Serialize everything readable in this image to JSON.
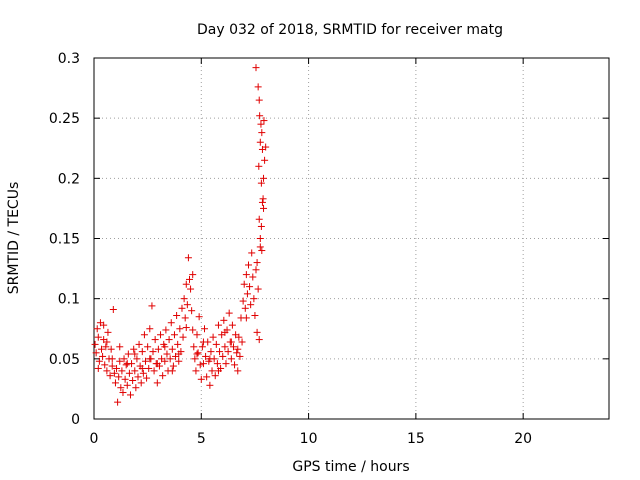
{
  "chart_data": {
    "type": "scatter",
    "title": "Day 032 of 2018, SRMTID for receiver matg",
    "xlabel": "GPS time / hours",
    "ylabel": "SRMTID / TECUs",
    "xlim": [
      0,
      24
    ],
    "ylim": [
      0,
      0.3
    ],
    "xticks": [
      0,
      5,
      10,
      15,
      20
    ],
    "xtick_labels": [
      "0",
      "5",
      "10",
      "15",
      "20"
    ],
    "yticks": [
      0,
      0.05,
      0.1,
      0.15,
      0.2,
      0.25,
      0.3
    ],
    "ytick_labels": [
      "0",
      "0.05",
      "0.1",
      "0.15",
      "0.2",
      "0.25",
      "0.3"
    ],
    "grid": true,
    "marker": "+",
    "color": "#e00000",
    "series": [
      {
        "name": "SRMTID",
        "points": [
          [
            0.05,
            0.062
          ],
          [
            0.1,
            0.055
          ],
          [
            0.15,
            0.075
          ],
          [
            0.2,
            0.068
          ],
          [
            0.25,
            0.048
          ],
          [
            0.3,
            0.08
          ],
          [
            0.35,
            0.058
          ],
          [
            0.4,
            0.052
          ],
          [
            0.45,
            0.066
          ],
          [
            0.5,
            0.045
          ],
          [
            0.55,
            0.06
          ],
          [
            0.6,
            0.04
          ],
          [
            0.65,
            0.072
          ],
          [
            0.7,
            0.05
          ],
          [
            0.75,
            0.036
          ],
          [
            0.8,
            0.058
          ],
          [
            0.85,
            0.044
          ],
          [
            0.9,
            0.091
          ],
          [
            0.95,
            0.038
          ],
          [
            1.0,
            0.03
          ],
          [
            1.05,
            0.042
          ],
          [
            1.1,
            0.014
          ],
          [
            1.15,
            0.035
          ],
          [
            1.2,
            0.048
          ],
          [
            1.25,
            0.026
          ],
          [
            1.3,
            0.04
          ],
          [
            1.35,
            0.022
          ],
          [
            1.4,
            0.05
          ],
          [
            1.45,
            0.033
          ],
          [
            1.5,
            0.045
          ],
          [
            1.55,
            0.028
          ],
          [
            1.6,
            0.054
          ],
          [
            1.65,
            0.038
          ],
          [
            1.7,
            0.02
          ],
          [
            1.75,
            0.046
          ],
          [
            1.8,
            0.032
          ],
          [
            1.85,
            0.058
          ],
          [
            1.9,
            0.04
          ],
          [
            1.95,
            0.026
          ],
          [
            2.0,
            0.05
          ],
          [
            2.05,
            0.035
          ],
          [
            2.1,
            0.062
          ],
          [
            2.15,
            0.044
          ],
          [
            2.2,
            0.03
          ],
          [
            2.25,
            0.056
          ],
          [
            2.3,
            0.038
          ],
          [
            2.35,
            0.07
          ],
          [
            2.4,
            0.048
          ],
          [
            2.45,
            0.034
          ],
          [
            2.5,
            0.06
          ],
          [
            2.55,
            0.042
          ],
          [
            2.6,
            0.075
          ],
          [
            2.65,
            0.05
          ],
          [
            2.7,
            0.094
          ],
          [
            2.75,
            0.056
          ],
          [
            2.8,
            0.04
          ],
          [
            2.85,
            0.066
          ],
          [
            2.9,
            0.046
          ],
          [
            2.95,
            0.03
          ],
          [
            3.0,
            0.058
          ],
          [
            3.05,
            0.044
          ],
          [
            3.1,
            0.07
          ],
          [
            3.15,
            0.05
          ],
          [
            3.2,
            0.036
          ],
          [
            3.25,
            0.062
          ],
          [
            3.3,
            0.048
          ],
          [
            3.35,
            0.074
          ],
          [
            3.4,
            0.054
          ],
          [
            3.45,
            0.04
          ],
          [
            3.5,
            0.066
          ],
          [
            3.55,
            0.05
          ],
          [
            3.6,
            0.08
          ],
          [
            3.65,
            0.058
          ],
          [
            3.7,
            0.044
          ],
          [
            3.75,
            0.07
          ],
          [
            3.8,
            0.052
          ],
          [
            3.85,
            0.086
          ],
          [
            3.9,
            0.062
          ],
          [
            3.95,
            0.048
          ],
          [
            4.0,
            0.075
          ],
          [
            4.05,
            0.056
          ],
          [
            4.1,
            0.092
          ],
          [
            4.15,
            0.068
          ],
          [
            4.2,
            0.1
          ],
          [
            4.25,
            0.084
          ],
          [
            4.3,
            0.112
          ],
          [
            4.35,
            0.095
          ],
          [
            4.4,
            0.134
          ],
          [
            4.45,
            0.116
          ],
          [
            4.5,
            0.108
          ],
          [
            4.55,
            0.09
          ],
          [
            4.6,
            0.074
          ],
          [
            4.65,
            0.06
          ],
          [
            4.7,
            0.05
          ],
          [
            4.75,
            0.04
          ],
          [
            4.8,
            0.07
          ],
          [
            4.85,
            0.055
          ],
          [
            4.9,
            0.085
          ],
          [
            4.95,
            0.045
          ],
          [
            5.0,
            0.033
          ],
          [
            5.05,
            0.06
          ],
          [
            5.1,
            0.046
          ],
          [
            5.15,
            0.075
          ],
          [
            5.2,
            0.052
          ],
          [
            5.25,
            0.035
          ],
          [
            5.3,
            0.064
          ],
          [
            5.35,
            0.048
          ],
          [
            5.4,
            0.028
          ],
          [
            5.45,
            0.056
          ],
          [
            5.5,
            0.04
          ],
          [
            5.55,
            0.068
          ],
          [
            5.6,
            0.05
          ],
          [
            5.65,
            0.036
          ],
          [
            5.7,
            0.062
          ],
          [
            5.75,
            0.046
          ],
          [
            5.8,
            0.078
          ],
          [
            5.85,
            0.056
          ],
          [
            5.9,
            0.042
          ],
          [
            5.95,
            0.07
          ],
          [
            6.0,
            0.052
          ],
          [
            6.05,
            0.082
          ],
          [
            6.1,
            0.06
          ],
          [
            6.15,
            0.046
          ],
          [
            6.2,
            0.074
          ],
          [
            6.25,
            0.056
          ],
          [
            6.3,
            0.088
          ],
          [
            6.35,
            0.064
          ],
          [
            6.4,
            0.05
          ],
          [
            6.45,
            0.078
          ],
          [
            6.5,
            0.06
          ],
          [
            6.55,
            0.045
          ],
          [
            6.6,
            0.07
          ],
          [
            6.65,
            0.055
          ],
          [
            6.7,
            0.04
          ],
          [
            6.75,
            0.068
          ],
          [
            6.8,
            0.052
          ],
          [
            6.85,
            0.084
          ],
          [
            6.9,
            0.064
          ],
          [
            6.95,
            0.098
          ],
          [
            7.0,
            0.112
          ],
          [
            7.05,
            0.092
          ],
          [
            7.1,
            0.12
          ],
          [
            7.15,
            0.104
          ],
          [
            7.2,
            0.128
          ],
          [
            7.25,
            0.11
          ],
          [
            7.3,
            0.095
          ],
          [
            7.35,
            0.138
          ],
          [
            7.4,
            0.118
          ],
          [
            7.45,
            0.1
          ],
          [
            7.5,
            0.086
          ],
          [
            7.55,
            0.124
          ],
          [
            7.6,
            0.072
          ],
          [
            7.65,
            0.108
          ],
          [
            7.7,
            0.066
          ],
          [
            7.75,
            0.143
          ],
          [
            7.8,
            0.16
          ],
          [
            7.85,
            0.18
          ],
          [
            7.9,
            0.2
          ],
          [
            7.95,
            0.215
          ],
          [
            8.0,
            0.226
          ]
        ]
      }
    ],
    "extra_points": [
      [
        7.55,
        0.292
      ],
      [
        7.65,
        0.276
      ],
      [
        7.7,
        0.265
      ],
      [
        7.72,
        0.252
      ],
      [
        7.78,
        0.245
      ],
      [
        7.82,
        0.238
      ],
      [
        7.75,
        0.23
      ],
      [
        7.85,
        0.224
      ],
      [
        7.8,
        0.196
      ],
      [
        7.88,
        0.183
      ],
      [
        7.7,
        0.166
      ],
      [
        7.75,
        0.15
      ],
      [
        7.82,
        0.14
      ],
      [
        7.6,
        0.13
      ],
      [
        7.92,
        0.248
      ],
      [
        7.68,
        0.21
      ],
      [
        7.9,
        0.175
      ],
      [
        0.2,
        0.042
      ],
      [
        0.45,
        0.078
      ],
      [
        0.6,
        0.064
      ],
      [
        0.85,
        0.05
      ],
      [
        1.2,
        0.06
      ],
      [
        1.55,
        0.046
      ],
      [
        1.9,
        0.054
      ],
      [
        2.25,
        0.042
      ],
      [
        2.6,
        0.05
      ],
      [
        2.95,
        0.046
      ],
      [
        3.3,
        0.06
      ],
      [
        3.65,
        0.04
      ],
      [
        3.95,
        0.054
      ],
      [
        4.3,
        0.076
      ],
      [
        4.6,
        0.12
      ],
      [
        4.8,
        0.054
      ],
      [
        5.1,
        0.064
      ],
      [
        5.4,
        0.05
      ],
      [
        5.8,
        0.04
      ],
      [
        6.1,
        0.072
      ],
      [
        6.4,
        0.064
      ],
      [
        6.7,
        0.058
      ],
      [
        7.1,
        0.084
      ]
    ]
  }
}
